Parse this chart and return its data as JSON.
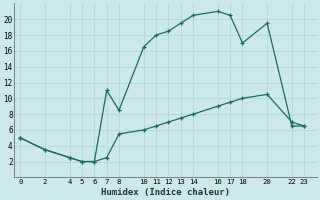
{
  "xlabel": "Humidex (Indice chaleur)",
  "ylabel": "",
  "xlim": [
    -0.5,
    24
  ],
  "ylim": [
    0,
    22
  ],
  "xticks": [
    0,
    2,
    4,
    5,
    6,
    7,
    8,
    10,
    11,
    12,
    13,
    14,
    16,
    17,
    18,
    20,
    22,
    23
  ],
  "yticks": [
    2,
    4,
    6,
    8,
    10,
    12,
    14,
    16,
    18,
    20
  ],
  "bg_color": "#cde8ec",
  "line_color": "#1a6b5e",
  "line1_x": [
    0,
    2,
    4,
    5,
    6,
    7,
    8,
    10,
    11,
    12,
    13,
    14,
    16,
    17,
    18,
    20,
    22,
    23
  ],
  "line1_y": [
    5,
    3.5,
    2.5,
    2,
    2,
    2.5,
    5.5,
    6,
    6.5,
    7,
    7.5,
    8,
    9,
    9.5,
    10,
    10.5,
    7,
    6.5
  ],
  "line2_x": [
    0,
    2,
    4,
    5,
    6,
    7,
    8,
    10,
    11,
    12,
    13,
    14,
    16,
    17,
    18,
    20,
    22,
    23
  ],
  "line2_y": [
    5,
    3.5,
    2.5,
    2,
    2,
    11,
    8.5,
    16.5,
    18,
    18.5,
    19.5,
    20.5,
    21,
    20.5,
    17,
    19.5,
    6.5,
    6.5
  ]
}
